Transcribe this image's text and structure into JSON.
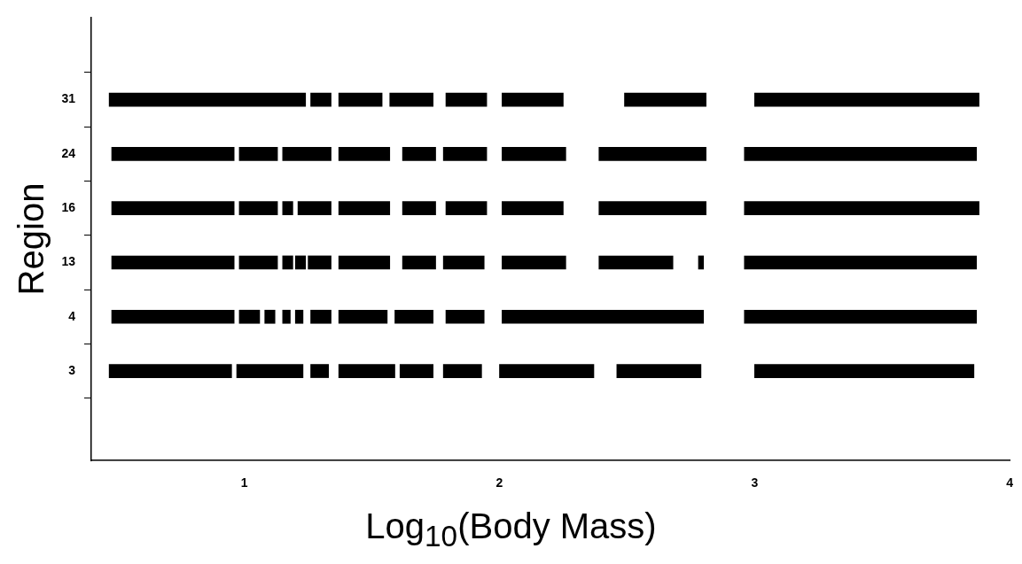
{
  "chart_data": {
    "type": "bar",
    "orientation": "horizontal",
    "xlabel": "Log$_{10}$(Body Mass)",
    "ylabel": "Region",
    "categories": [
      "31",
      "24",
      "16",
      "13",
      "4",
      "3"
    ],
    "xlim": [
      0.4,
      4
    ],
    "xticks": [
      1,
      2,
      3,
      4
    ],
    "grid": false,
    "legend": false,
    "series": [
      {
        "color": "#000000",
        "base": [
          0.47,
          0.48,
          0.48,
          0.48,
          0.48,
          0.47
        ],
        "values": [
          0.77,
          0.48,
          0.48,
          0.48,
          0.48,
          0.48
        ]
      },
      {
        "color": "#000000",
        "base": [
          1.26,
          0.98,
          0.98,
          0.98,
          0.98,
          0.97
        ],
        "values": [
          0.08,
          0.15,
          0.15,
          0.15,
          0.08,
          0.26
        ]
      },
      {
        "color": "#000000",
        "base": [
          1.37,
          1.15,
          1.15,
          1.15,
          1.08,
          1.26
        ],
        "values": [
          0.17,
          0.19,
          0.04,
          0.04,
          0.04,
          0.07
        ]
      },
      {
        "color": "#000000",
        "base": [
          1.57,
          1.37,
          1.21,
          1.2,
          1.15,
          1.37
        ],
        "values": [
          0.17,
          0.2,
          0.13,
          0.04,
          0.03,
          0.22
        ]
      },
      {
        "color": "#000000",
        "base": [
          1.79,
          1.62,
          1.37,
          1.25,
          1.2,
          1.61
        ],
        "values": [
          0.16,
          0.13,
          0.2,
          0.09,
          0.03,
          0.13
        ]
      },
      {
        "color": "#000000",
        "base": [
          2.01,
          1.78,
          1.62,
          1.37,
          1.26,
          1.78
        ],
        "values": [
          0.24,
          0.17,
          0.13,
          0.2,
          0.08,
          0.15
        ]
      },
      {
        "color": "#000000",
        "base": [
          2.49,
          2.01,
          1.79,
          1.62,
          1.37,
          2.0
        ],
        "values": [
          0.32,
          0.25,
          0.16,
          0.13,
          0.19,
          0.37
        ]
      },
      {
        "color": "#000000",
        "base": [
          3.0,
          2.39,
          2.01,
          1.78,
          1.59,
          2.46
        ],
        "values": [
          0.88,
          0.42,
          0.24,
          0.16,
          0.15,
          0.33
        ]
      },
      {
        "color": "#000000",
        "base": [
          null,
          2.96,
          2.39,
          2.01,
          1.79,
          3.0
        ],
        "values": [
          null,
          0.91,
          0.42,
          0.25,
          0.15,
          0.86
        ]
      },
      {
        "color": "#000000",
        "base": [
          null,
          null,
          2.96,
          2.39,
          2.01,
          null
        ],
        "values": [
          null,
          null,
          0.92,
          0.29,
          0.79,
          null
        ]
      },
      {
        "color": "#000000",
        "base": [
          null,
          null,
          null,
          2.78,
          2.96,
          null
        ],
        "values": [
          null,
          null,
          null,
          0.02,
          0.91,
          null
        ]
      },
      {
        "color": "#000000",
        "base": [
          null,
          null,
          null,
          2.96,
          null,
          null
        ],
        "values": [
          null,
          null,
          null,
          0.91,
          null,
          null
        ]
      }
    ]
  }
}
